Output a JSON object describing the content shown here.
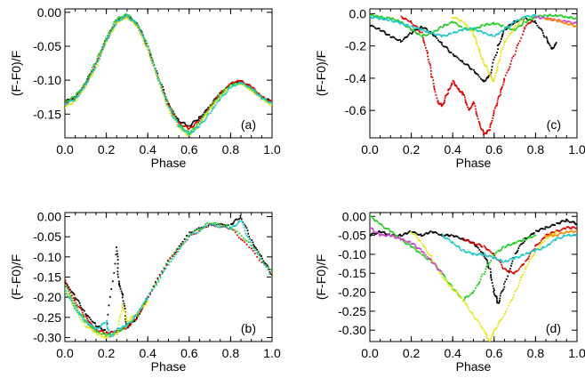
{
  "chart_data": [
    {
      "type": "scatter",
      "panel_label": "(a)",
      "xlabel": "Phase",
      "ylabel": "(F-F0)/F",
      "xlim": [
        0.0,
        1.0
      ],
      "ylim": [
        -0.185,
        0.005
      ],
      "xticks": [
        0.0,
        0.2,
        0.4,
        0.6,
        0.8,
        1.0
      ],
      "xtick_labels": [
        "0.0",
        "0.2",
        "0.4",
        "0.6",
        "0.8",
        "1.0"
      ],
      "yticks": [
        0.0,
        -0.05,
        -0.1,
        -0.15
      ],
      "ytick_labels": [
        "0.00",
        "-0.05",
        "-0.10",
        "-0.15"
      ],
      "series": [
        {
          "color": "#000000",
          "x": [
            0.0,
            0.05,
            0.1,
            0.15,
            0.2,
            0.25,
            0.3,
            0.35,
            0.4,
            0.45,
            0.5,
            0.55,
            0.6,
            0.65,
            0.7,
            0.75,
            0.8,
            0.85,
            0.9,
            0.95,
            1.0
          ],
          "y": [
            -0.132,
            -0.125,
            -0.105,
            -0.075,
            -0.04,
            -0.012,
            -0.004,
            -0.018,
            -0.05,
            -0.095,
            -0.135,
            -0.16,
            -0.168,
            -0.155,
            -0.138,
            -0.12,
            -0.106,
            -0.102,
            -0.112,
            -0.125,
            -0.132
          ]
        },
        {
          "color": "#dd0000",
          "x": [
            0.0,
            0.05,
            0.1,
            0.15,
            0.2,
            0.25,
            0.3,
            0.35,
            0.4,
            0.45,
            0.5,
            0.55,
            0.6,
            0.65,
            0.7,
            0.75,
            0.8,
            0.85,
            0.9,
            0.95,
            1.0
          ],
          "y": [
            -0.134,
            -0.127,
            -0.107,
            -0.077,
            -0.042,
            -0.013,
            -0.006,
            -0.02,
            -0.052,
            -0.097,
            -0.138,
            -0.163,
            -0.172,
            -0.16,
            -0.14,
            -0.12,
            -0.105,
            -0.101,
            -0.11,
            -0.124,
            -0.133
          ]
        },
        {
          "color": "#22cc22",
          "x": [
            0.0,
            0.05,
            0.1,
            0.15,
            0.2,
            0.25,
            0.3,
            0.35,
            0.4,
            0.45,
            0.5,
            0.55,
            0.6,
            0.65,
            0.7,
            0.75,
            0.8,
            0.85,
            0.9,
            0.95,
            1.0
          ],
          "y": [
            -0.133,
            -0.124,
            -0.104,
            -0.073,
            -0.038,
            -0.01,
            -0.003,
            -0.017,
            -0.05,
            -0.096,
            -0.137,
            -0.165,
            -0.178,
            -0.163,
            -0.14,
            -0.121,
            -0.107,
            -0.104,
            -0.113,
            -0.126,
            -0.134
          ]
        },
        {
          "color": "#e6e61a",
          "x": [
            0.0,
            0.05,
            0.1,
            0.15,
            0.2,
            0.25,
            0.3,
            0.35,
            0.4,
            0.45,
            0.5,
            0.55,
            0.6,
            0.65,
            0.7,
            0.75,
            0.8,
            0.85,
            0.9,
            0.95,
            1.0
          ],
          "y": [
            -0.14,
            -0.13,
            -0.11,
            -0.08,
            -0.044,
            -0.015,
            -0.007,
            -0.022,
            -0.055,
            -0.1,
            -0.142,
            -0.17,
            -0.182,
            -0.166,
            -0.143,
            -0.124,
            -0.109,
            -0.105,
            -0.114,
            -0.128,
            -0.137
          ]
        },
        {
          "color": "#1ec8c8",
          "x": [
            0.0,
            0.05,
            0.1,
            0.15,
            0.2,
            0.25,
            0.3,
            0.35,
            0.4,
            0.45,
            0.5,
            0.55,
            0.6,
            0.65,
            0.7,
            0.75,
            0.8,
            0.85,
            0.9,
            0.95,
            1.0
          ],
          "y": [
            -0.136,
            -0.128,
            -0.108,
            -0.078,
            -0.043,
            -0.014,
            -0.005,
            -0.019,
            -0.051,
            -0.098,
            -0.14,
            -0.168,
            -0.18,
            -0.168,
            -0.148,
            -0.128,
            -0.11,
            -0.104,
            -0.112,
            -0.126,
            -0.135
          ]
        }
      ]
    },
    {
      "type": "scatter",
      "panel_label": "(c)",
      "xlabel": "Phase",
      "ylabel": "(F-F0)/F",
      "xlim": [
        0.0,
        1.0
      ],
      "ylim": [
        -0.77,
        0.03
      ],
      "xticks": [
        0.0,
        0.2,
        0.4,
        0.6,
        0.8,
        1.0
      ],
      "xtick_labels": [
        "0.0",
        "0.2",
        "0.4",
        "0.6",
        "0.8",
        "1.0"
      ],
      "yticks": [
        0.0,
        -0.2,
        -0.4,
        -0.6
      ],
      "ytick_labels": [
        "0.0",
        "-0.2",
        "-0.4",
        "-0.6"
      ],
      "series": [
        {
          "color": "#000000",
          "x": [
            0.0,
            0.05,
            0.1,
            0.15,
            0.2,
            0.25,
            0.3,
            0.35,
            0.4,
            0.45,
            0.5,
            0.55,
            0.58,
            0.62,
            0.65,
            0.7,
            0.75,
            0.8,
            0.85,
            0.88,
            0.9
          ],
          "y": [
            -0.07,
            -0.1,
            -0.14,
            -0.17,
            -0.12,
            -0.08,
            -0.12,
            -0.19,
            -0.25,
            -0.3,
            -0.35,
            -0.42,
            -0.38,
            -0.2,
            -0.1,
            -0.05,
            -0.03,
            -0.05,
            -0.15,
            -0.22,
            -0.18
          ]
        },
        {
          "color": "#dd0000",
          "x": [
            0.15,
            0.2,
            0.25,
            0.28,
            0.3,
            0.33,
            0.35,
            0.38,
            0.4,
            0.43,
            0.45,
            0.48,
            0.5,
            0.53,
            0.55,
            0.58,
            0.6,
            0.63,
            0.65,
            0.7,
            0.75,
            0.8
          ],
          "y": [
            -0.02,
            -0.05,
            -0.12,
            -0.25,
            -0.4,
            -0.55,
            -0.57,
            -0.48,
            -0.42,
            -0.47,
            -0.5,
            -0.6,
            -0.55,
            -0.68,
            -0.75,
            -0.72,
            -0.6,
            -0.5,
            -0.4,
            -0.25,
            -0.08,
            -0.02
          ]
        },
        {
          "color": "#22cc22",
          "x": [
            0.0,
            0.05,
            0.1,
            0.15,
            0.2,
            0.25,
            0.3,
            0.35,
            0.4,
            0.45,
            0.5,
            0.55,
            0.6,
            0.65,
            0.7,
            0.75,
            0.8,
            0.85,
            0.9,
            0.95,
            1.0
          ],
          "y": [
            -0.01,
            -0.02,
            -0.03,
            -0.05,
            -0.1,
            -0.14,
            -0.12,
            -0.08,
            -0.05,
            -0.09,
            -0.1,
            -0.07,
            -0.06,
            -0.08,
            -0.1,
            -0.05,
            -0.02,
            -0.01,
            -0.01,
            -0.02,
            -0.03
          ]
        },
        {
          "color": "#e6e61a",
          "x": [
            0.4,
            0.45,
            0.5,
            0.52,
            0.55,
            0.58,
            0.6,
            0.62,
            0.65,
            0.7,
            0.75
          ],
          "y": [
            -0.02,
            -0.05,
            -0.12,
            -0.2,
            -0.3,
            -0.38,
            -0.42,
            -0.3,
            -0.18,
            -0.08,
            -0.02
          ]
        },
        {
          "color": "#1ec8c8",
          "x": [
            0.0,
            0.05,
            0.1,
            0.15,
            0.2,
            0.25,
            0.3,
            0.35,
            0.4,
            0.45,
            0.5,
            0.55,
            0.6,
            0.65,
            0.7,
            0.75,
            0.8
          ],
          "y": [
            -0.02,
            -0.03,
            -0.04,
            -0.06,
            -0.08,
            -0.1,
            -0.12,
            -0.14,
            -0.12,
            -0.1,
            -0.09,
            -0.12,
            -0.14,
            -0.1,
            -0.05,
            -0.02,
            -0.01
          ]
        },
        {
          "color": "#cc44cc",
          "x": [
            0.8,
            0.85,
            0.9,
            0.95,
            1.0
          ],
          "y": [
            -0.02,
            -0.03,
            -0.04,
            -0.05,
            -0.06
          ]
        },
        {
          "color": "#ff8800",
          "x": [
            0.85,
            0.9,
            0.95,
            1.0
          ],
          "y": [
            -0.03,
            -0.04,
            -0.06,
            -0.08
          ]
        }
      ]
    },
    {
      "type": "scatter",
      "panel_label": "(b)",
      "xlabel": "Phase",
      "ylabel": "(F-F0)/F",
      "xlim": [
        0.0,
        1.0
      ],
      "ylim": [
        -0.31,
        0.01
      ],
      "xticks": [
        0.0,
        0.2,
        0.4,
        0.6,
        0.8,
        1.0
      ],
      "xtick_labels": [
        "0.0",
        "0.2",
        "0.4",
        "0.6",
        "0.8",
        "1.0"
      ],
      "yticks": [
        0.0,
        -0.05,
        -0.1,
        -0.15,
        -0.2,
        -0.25,
        -0.3
      ],
      "ytick_labels": [
        "0.00",
        "-0.05",
        "-0.10",
        "-0.15",
        "-0.20",
        "-0.25",
        "-0.30"
      ],
      "series": [
        {
          "color": "#000000",
          "x": [
            0.0,
            0.05,
            0.1,
            0.15,
            0.2,
            0.25,
            0.26,
            0.28,
            0.3,
            0.35,
            0.4,
            0.5,
            0.6,
            0.7,
            0.8,
            0.85,
            0.9,
            0.95,
            1.0
          ],
          "y": [
            -0.16,
            -0.2,
            -0.24,
            -0.27,
            -0.285,
            -0.075,
            -0.16,
            -0.2,
            -0.275,
            -0.25,
            -0.2,
            -0.11,
            -0.04,
            -0.02,
            -0.02,
            0.0,
            -0.06,
            -0.1,
            -0.145
          ]
        },
        {
          "color": "#dd0000",
          "x": [
            0.0,
            0.05,
            0.1,
            0.15,
            0.2,
            0.25,
            0.3,
            0.35,
            0.4,
            0.5,
            0.6,
            0.7,
            0.8,
            0.9,
            1.0
          ],
          "y": [
            -0.16,
            -0.21,
            -0.25,
            -0.28,
            -0.29,
            -0.285,
            -0.275,
            -0.25,
            -0.2,
            -0.11,
            -0.05,
            -0.02,
            -0.03,
            -0.08,
            -0.145
          ]
        },
        {
          "color": "#22cc22",
          "x": [
            0.0,
            0.05,
            0.1,
            0.15,
            0.2,
            0.25,
            0.3,
            0.35,
            0.4,
            0.5,
            0.6,
            0.7,
            0.8,
            0.9,
            1.0
          ],
          "y": [
            -0.17,
            -0.22,
            -0.26,
            -0.285,
            -0.295,
            -0.29,
            -0.27,
            -0.245,
            -0.2,
            -0.11,
            -0.045,
            -0.015,
            -0.025,
            -0.07,
            -0.14
          ]
        },
        {
          "color": "#e6e61a",
          "x": [
            0.0,
            0.05,
            0.1,
            0.15,
            0.2,
            0.25,
            0.28,
            0.3,
            0.35,
            0.4
          ],
          "y": [
            -0.18,
            -0.23,
            -0.27,
            -0.29,
            -0.3,
            -0.29,
            -0.22,
            -0.26,
            -0.24,
            -0.21
          ]
        },
        {
          "color": "#1ec8c8",
          "x": [
            0.0,
            0.05,
            0.1,
            0.15,
            0.2,
            0.22,
            0.25,
            0.3,
            0.35,
            0.4,
            0.5,
            0.6,
            0.7,
            0.8,
            0.85,
            0.9,
            1.0
          ],
          "y": [
            -0.18,
            -0.23,
            -0.26,
            -0.28,
            -0.26,
            -0.3,
            -0.28,
            -0.27,
            -0.24,
            -0.2,
            -0.12,
            -0.05,
            -0.02,
            -0.03,
            -0.01,
            -0.07,
            -0.15
          ]
        }
      ]
    },
    {
      "type": "scatter",
      "panel_label": "(d)",
      "xlabel": "Phase",
      "ylabel": "(F-F0)/F",
      "xlim": [
        0.0,
        1.0
      ],
      "ylim": [
        -0.33,
        0.01
      ],
      "xticks": [
        0.0,
        0.2,
        0.4,
        0.6,
        0.8,
        1.0
      ],
      "xtick_labels": [
        "0.0",
        "0.2",
        "0.4",
        "0.6",
        "0.8",
        "1.0"
      ],
      "yticks": [
        0.0,
        -0.05,
        -0.1,
        -0.15,
        -0.2,
        -0.25,
        -0.3
      ],
      "ytick_labels": [
        "0.00",
        "-0.05",
        "-0.10",
        "-0.15",
        "-0.20",
        "-0.25",
        "-0.30"
      ],
      "series": [
        {
          "color": "#000000",
          "x": [
            0.0,
            0.05,
            0.1,
            0.15,
            0.2,
            0.25,
            0.3,
            0.35,
            0.4,
            0.45,
            0.5,
            0.55,
            0.58,
            0.6,
            0.62,
            0.65,
            0.7,
            0.75,
            0.8,
            0.85,
            0.9,
            0.95,
            1.0
          ],
          "y": [
            -0.05,
            -0.04,
            -0.05,
            -0.05,
            -0.04,
            -0.05,
            -0.04,
            -0.05,
            -0.05,
            -0.06,
            -0.07,
            -0.1,
            -0.14,
            -0.2,
            -0.23,
            -0.18,
            -0.1,
            -0.06,
            -0.04,
            -0.03,
            -0.02,
            -0.01,
            -0.02
          ]
        },
        {
          "color": "#dd0000",
          "x": [
            0.45,
            0.5,
            0.55,
            0.6,
            0.65,
            0.7,
            0.75,
            0.8,
            0.85,
            0.9,
            0.95,
            1.0
          ],
          "y": [
            -0.06,
            -0.07,
            -0.08,
            -0.1,
            -0.14,
            -0.15,
            -0.12,
            -0.08,
            -0.05,
            -0.04,
            -0.03,
            -0.03
          ]
        },
        {
          "color": "#22cc22",
          "x": [
            0.0,
            0.05,
            0.1,
            0.15,
            0.2,
            0.25,
            0.3,
            0.35,
            0.4,
            0.45,
            0.5,
            0.55,
            0.6,
            0.65,
            0.7,
            0.75,
            0.8
          ],
          "y": [
            0.0,
            -0.02,
            -0.04,
            -0.06,
            -0.08,
            -0.1,
            -0.12,
            -0.15,
            -0.19,
            -0.22,
            -0.2,
            -0.15,
            -0.1,
            -0.08,
            -0.07,
            -0.06,
            -0.05
          ]
        },
        {
          "color": "#e6e61a",
          "x": [
            0.2,
            0.25,
            0.3,
            0.35,
            0.4,
            0.45,
            0.5,
            0.55,
            0.58,
            0.6,
            0.65,
            0.7,
            0.75,
            0.8,
            0.85,
            0.9
          ],
          "y": [
            -0.04,
            -0.07,
            -0.11,
            -0.16,
            -0.19,
            -0.22,
            -0.26,
            -0.3,
            -0.33,
            -0.3,
            -0.26,
            -0.2,
            -0.14,
            -0.09,
            -0.06,
            -0.04
          ]
        },
        {
          "color": "#1ec8c8",
          "x": [
            0.35,
            0.4,
            0.45,
            0.5,
            0.55,
            0.6,
            0.65,
            0.7,
            0.75,
            0.8,
            0.85,
            0.9,
            0.95,
            1.0
          ],
          "y": [
            -0.05,
            -0.07,
            -0.09,
            -0.1,
            -0.1,
            -0.11,
            -0.12,
            -0.11,
            -0.1,
            -0.09,
            -0.08,
            -0.06,
            -0.05,
            -0.05
          ]
        },
        {
          "color": "#cc44cc",
          "x": [
            0.0,
            0.05,
            0.1,
            0.15,
            0.2,
            0.25,
            0.3,
            0.35
          ],
          "y": [
            -0.03,
            -0.05,
            -0.05,
            -0.06,
            -0.07,
            -0.09,
            -0.12,
            -0.15
          ]
        },
        {
          "color": "#ff8800",
          "x": [
            0.85,
            0.9,
            0.95,
            1.0
          ],
          "y": [
            -0.05,
            -0.05,
            -0.04,
            -0.04
          ]
        }
      ]
    }
  ]
}
